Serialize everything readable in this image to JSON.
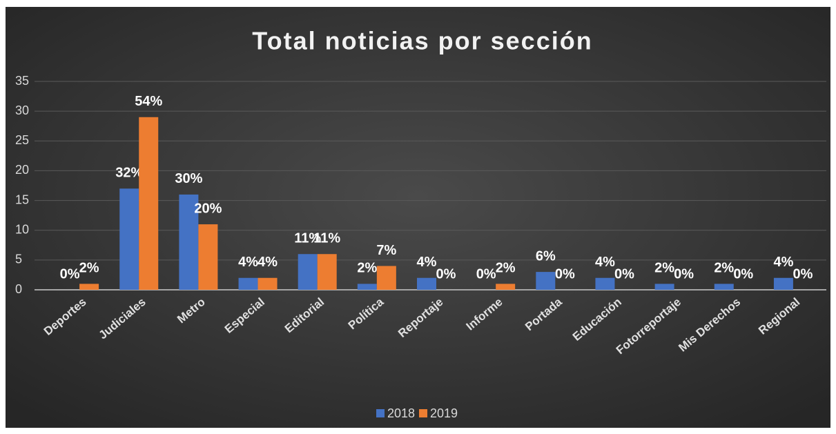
{
  "chart_data": {
    "type": "bar",
    "title": "Total noticias por sección",
    "categories": [
      "Deportes",
      "Judiciales",
      "Metro",
      "Especial",
      "Editorial",
      "Política",
      "Reportaje",
      "Informe",
      "Portada",
      "Educación",
      "Fotorreportaje",
      "Mis Derechos",
      "Regional"
    ],
    "series": [
      {
        "name": "2018",
        "color": "#4472c4",
        "values": [
          0,
          17,
          16,
          2,
          6,
          1,
          2,
          0,
          3,
          2,
          1,
          1,
          2
        ],
        "value_labels": [
          "0%",
          "32%",
          "30%",
          "4%",
          "11%",
          "2%",
          "4%",
          "0%",
          "6%",
          "4%",
          "2%",
          "2%",
          "4%"
        ]
      },
      {
        "name": "2019",
        "color": "#ed7d31",
        "values": [
          1,
          29,
          11,
          2,
          6,
          4,
          0,
          1,
          0,
          0,
          0,
          0,
          0
        ],
        "value_labels": [
          "2%",
          "54%",
          "20%",
          "4%",
          "11%",
          "7%",
          "0%",
          "2%",
          "0%",
          "0%",
          "0%",
          "0%",
          "0%"
        ]
      }
    ],
    "ylim": [
      0,
      35
    ],
    "yticks": [
      0,
      5,
      10,
      15,
      20,
      25,
      30,
      35
    ],
    "grid": true,
    "legend": "bottom"
  }
}
